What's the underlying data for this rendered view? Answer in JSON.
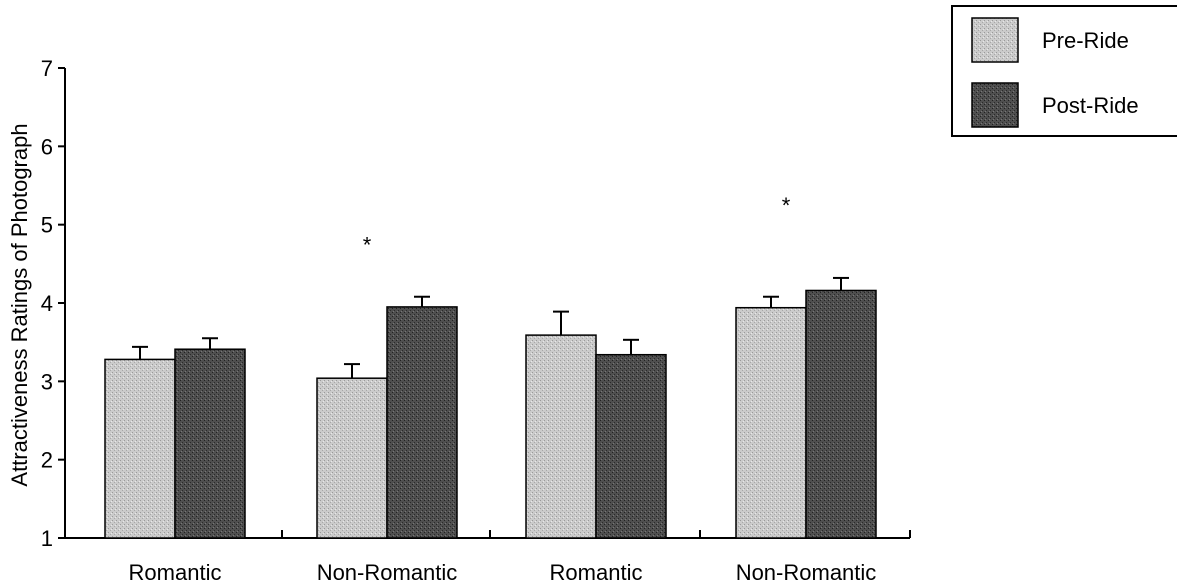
{
  "chart_data": {
    "type": "bar",
    "title": "",
    "xlabel": "",
    "ylabel": "Attractiveness Ratings of Photograph",
    "ylim": [
      1,
      7
    ],
    "yticks": [
      "1",
      "2",
      "3",
      "4",
      "5",
      "6",
      "7"
    ],
    "categories": [
      "Romantic",
      "Non-Romantic",
      "Romantic",
      "Non-Romantic"
    ],
    "series": [
      {
        "name": "Pre-Ride",
        "values": [
          3.28,
          3.04,
          3.59,
          3.94
        ],
        "errors": [
          0.16,
          0.18,
          0.3,
          0.14
        ],
        "color": "#c8c8c8"
      },
      {
        "name": "Post-Ride",
        "values": [
          3.41,
          3.95,
          3.34,
          4.16
        ],
        "errors": [
          0.14,
          0.13,
          0.19,
          0.16
        ],
        "color": "#4a4a4a"
      }
    ],
    "annotations": [
      {
        "category_index": 1,
        "text": "*",
        "y": 4.75
      },
      {
        "category_index": 3,
        "text": "*",
        "y": 5.25
      }
    ],
    "legend_placement": "top-right",
    "grid": false
  }
}
